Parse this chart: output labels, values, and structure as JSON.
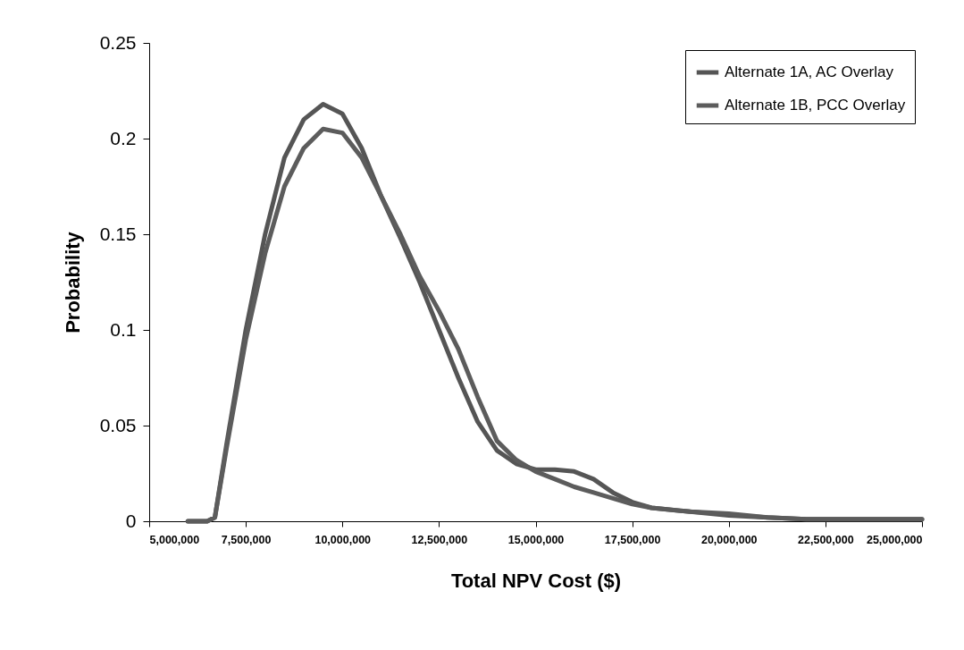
{
  "chart_data": {
    "type": "line",
    "xlabel": "Total NPV Cost ($)",
    "ylabel": "Probability",
    "x": [
      6000000,
      6500000,
      6700000,
      7000000,
      7500000,
      8000000,
      8500000,
      9000000,
      9500000,
      10000000,
      10500000,
      11000000,
      11500000,
      12000000,
      12500000,
      13000000,
      13500000,
      14000000,
      14500000,
      15000000,
      15500000,
      16000000,
      16500000,
      17000000,
      17500000,
      18000000,
      19000000,
      20000000,
      21000000,
      22000000,
      23000000,
      24000000,
      25000000
    ],
    "series": [
      {
        "name": "Alternate 1A, AC Overlay",
        "color": "#555555",
        "values": [
          0,
          0,
          0.002,
          0.04,
          0.1,
          0.15,
          0.19,
          0.21,
          0.218,
          0.213,
          0.195,
          0.17,
          0.148,
          0.125,
          0.1,
          0.075,
          0.052,
          0.037,
          0.03,
          0.027,
          0.027,
          0.026,
          0.022,
          0.015,
          0.01,
          0.007,
          0.005,
          0.003,
          0.002,
          0.001,
          0.001,
          0.001,
          0.001
        ]
      },
      {
        "name": "Alternate 1B, PCC Overlay",
        "color": "#5c5c5c",
        "values": [
          0,
          0,
          0.002,
          0.038,
          0.095,
          0.14,
          0.175,
          0.195,
          0.205,
          0.203,
          0.19,
          0.17,
          0.15,
          0.128,
          0.11,
          0.09,
          0.065,
          0.042,
          0.032,
          0.026,
          0.022,
          0.018,
          0.015,
          0.012,
          0.009,
          0.007,
          0.005,
          0.004,
          0.002,
          0.001,
          0.001,
          0.001,
          0.001
        ]
      }
    ],
    "xlim": [
      5000000,
      25000000
    ],
    "xticks": [
      {
        "value": 5000000,
        "label": "5,000,000"
      },
      {
        "value": 7500000,
        "label": "7,500,000"
      },
      {
        "value": 10000000,
        "label": "10,000,000"
      },
      {
        "value": 12500000,
        "label": "12,500,000"
      },
      {
        "value": 15000000,
        "label": "15,000,000"
      },
      {
        "value": 17500000,
        "label": "17,500,000"
      },
      {
        "value": 20000000,
        "label": "20,000,000"
      },
      {
        "value": 22500000,
        "label": "22,500,000"
      },
      {
        "value": 25000000,
        "label": "25,000,000"
      }
    ],
    "ylim": [
      0,
      0.25
    ],
    "yticks": [
      0,
      0.05,
      0.1,
      0.15,
      0.2,
      0.25
    ],
    "grid": false,
    "legend": "top right",
    "line_style": "solid",
    "marker": "none"
  }
}
